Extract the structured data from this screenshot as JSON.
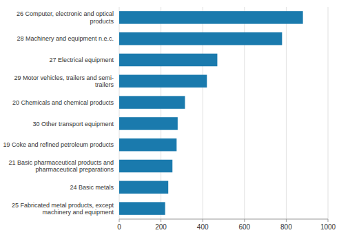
{
  "chart_data": {
    "type": "bar",
    "orientation": "horizontal",
    "categories": [
      "25 Fabricated metal products, except\nmachinery and equipment",
      "24 Basic metals",
      "21 Basic pharmaceutical products and\npharmaceutical preparations",
      "19 Coke and refined petroleum products",
      "30 Other transport equipment",
      "20 Chemicals and chemical products",
      "29 Motor vehicles, trailers and semi-\ntrailers",
      "27 Electrical equipment",
      "28 Machinery and equipment n.e.c.",
      "26 Computer, electronic and optical\nproducts"
    ],
    "values": [
      220,
      235,
      255,
      275,
      280,
      315,
      420,
      470,
      780,
      880
    ],
    "color": "#1a7aad",
    "xlim": [
      0,
      1000
    ],
    "xticks": [
      0,
      200,
      400,
      600,
      800,
      1000
    ],
    "grid": true
  }
}
